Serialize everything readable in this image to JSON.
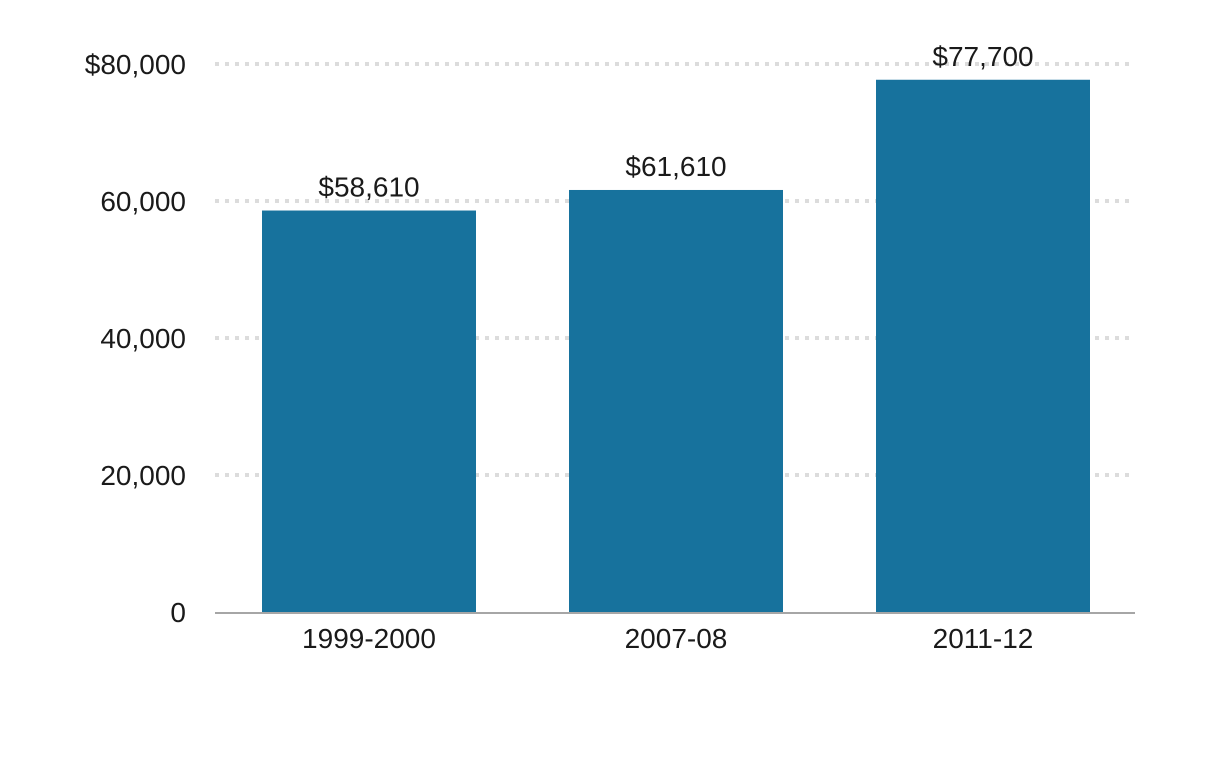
{
  "chart_data": {
    "type": "bar",
    "title": "",
    "xlabel": "",
    "ylabel": "",
    "categories": [
      "1999-2000",
      "2007-08",
      "2011-12"
    ],
    "values": [
      58610,
      61610,
      77700
    ],
    "value_labels": [
      "$58,610",
      "$61,610",
      "$77,700"
    ],
    "ylim": [
      0,
      80000
    ],
    "yticks": [
      0,
      20000,
      40000,
      60000,
      80000
    ],
    "ytick_labels": [
      "0",
      "20,000",
      "40,000",
      "60,000",
      "$80,000"
    ],
    "grid": true,
    "grid_style": "dotted",
    "legend": "none",
    "colors": {
      "bar": "#17729d",
      "grid": "#dcdcdc",
      "axis": "#a6a6a6",
      "text": "#1a1a1a"
    }
  }
}
